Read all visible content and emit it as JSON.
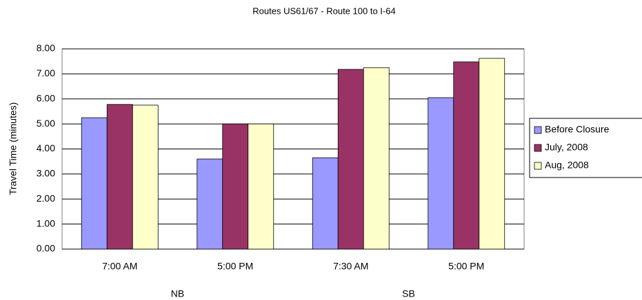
{
  "chart_data": {
    "type": "bar",
    "title": "Routes US61/67 - Route 100 to I-64",
    "y_label": "Travel Time (minutes)",
    "groups": [
      {
        "name": "NB",
        "categories": [
          "7:00 AM",
          "5:00 PM"
        ]
      },
      {
        "name": "SB",
        "categories": [
          "7:30 AM",
          "5:00 PM"
        ]
      }
    ],
    "series": [
      {
        "name": "Before Closure",
        "color": "#9999ff",
        "values": [
          5.25,
          3.6,
          3.65,
          6.05
        ]
      },
      {
        "name": "July, 2008",
        "color": "#993366",
        "values": [
          5.78,
          5.0,
          7.18,
          7.48
        ]
      },
      {
        "name": "Aug, 2008",
        "color": "#ffffcc",
        "values": [
          5.75,
          5.0,
          7.25,
          7.62
        ]
      }
    ],
    "ylim": [
      0,
      8
    ],
    "yticks": [
      {
        "value": 0,
        "label": "0.00"
      },
      {
        "value": 1,
        "label": "1.00"
      },
      {
        "value": 2,
        "label": "2.00"
      },
      {
        "value": 3,
        "label": "3.00"
      },
      {
        "value": 4,
        "label": "4.00"
      },
      {
        "value": 5,
        "label": "5.00"
      },
      {
        "value": 6,
        "label": "6.00"
      },
      {
        "value": 7,
        "label": "7.00"
      },
      {
        "value": 8,
        "label": "8.00"
      }
    ],
    "grid": true,
    "legend": "right"
  }
}
